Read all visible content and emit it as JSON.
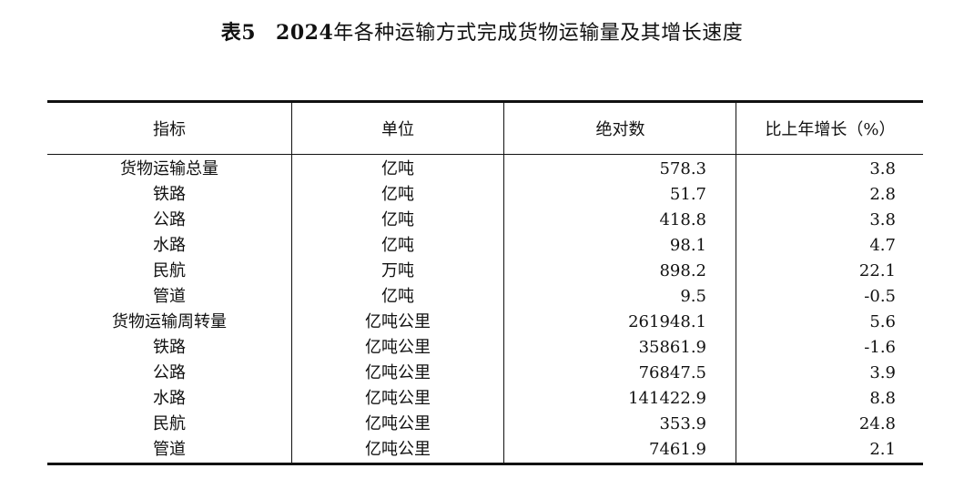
{
  "title": {
    "label": "表5",
    "year": "2024",
    "text": "年各种运输方式完成货物运输量及其增长速度"
  },
  "table": {
    "headers": [
      "指标",
      "单位",
      "绝对数",
      "比上年增长（%）"
    ],
    "rows": [
      {
        "name": "货物运输总量",
        "unit": "亿吨",
        "value": "578.3",
        "growth": "3.8"
      },
      {
        "name": "铁路",
        "unit": "亿吨",
        "value": "51.7",
        "growth": "2.8"
      },
      {
        "name": "公路",
        "unit": "亿吨",
        "value": "418.8",
        "growth": "3.8"
      },
      {
        "name": "水路",
        "unit": "亿吨",
        "value": "98.1",
        "growth": "4.7"
      },
      {
        "name": "民航",
        "unit": "万吨",
        "value": "898.2",
        "growth": "22.1"
      },
      {
        "name": "管道",
        "unit": "亿吨",
        "value": "9.5",
        "growth": "-0.5"
      },
      {
        "name": "货物运输周转量",
        "unit": "亿吨公里",
        "value": "261948.1",
        "growth": "5.6"
      },
      {
        "name": "铁路",
        "unit": "亿吨公里",
        "value": "35861.9",
        "growth": "-1.6"
      },
      {
        "name": "公路",
        "unit": "亿吨公里",
        "value": "76847.5",
        "growth": "3.9"
      },
      {
        "name": "水路",
        "unit": "亿吨公里",
        "value": "141422.9",
        "growth": "8.8"
      },
      {
        "name": "民航",
        "unit": "亿吨公里",
        "value": "353.9",
        "growth": "24.8"
      },
      {
        "name": "管道",
        "unit": "亿吨公里",
        "value": "7461.9",
        "growth": "2.1"
      }
    ]
  }
}
